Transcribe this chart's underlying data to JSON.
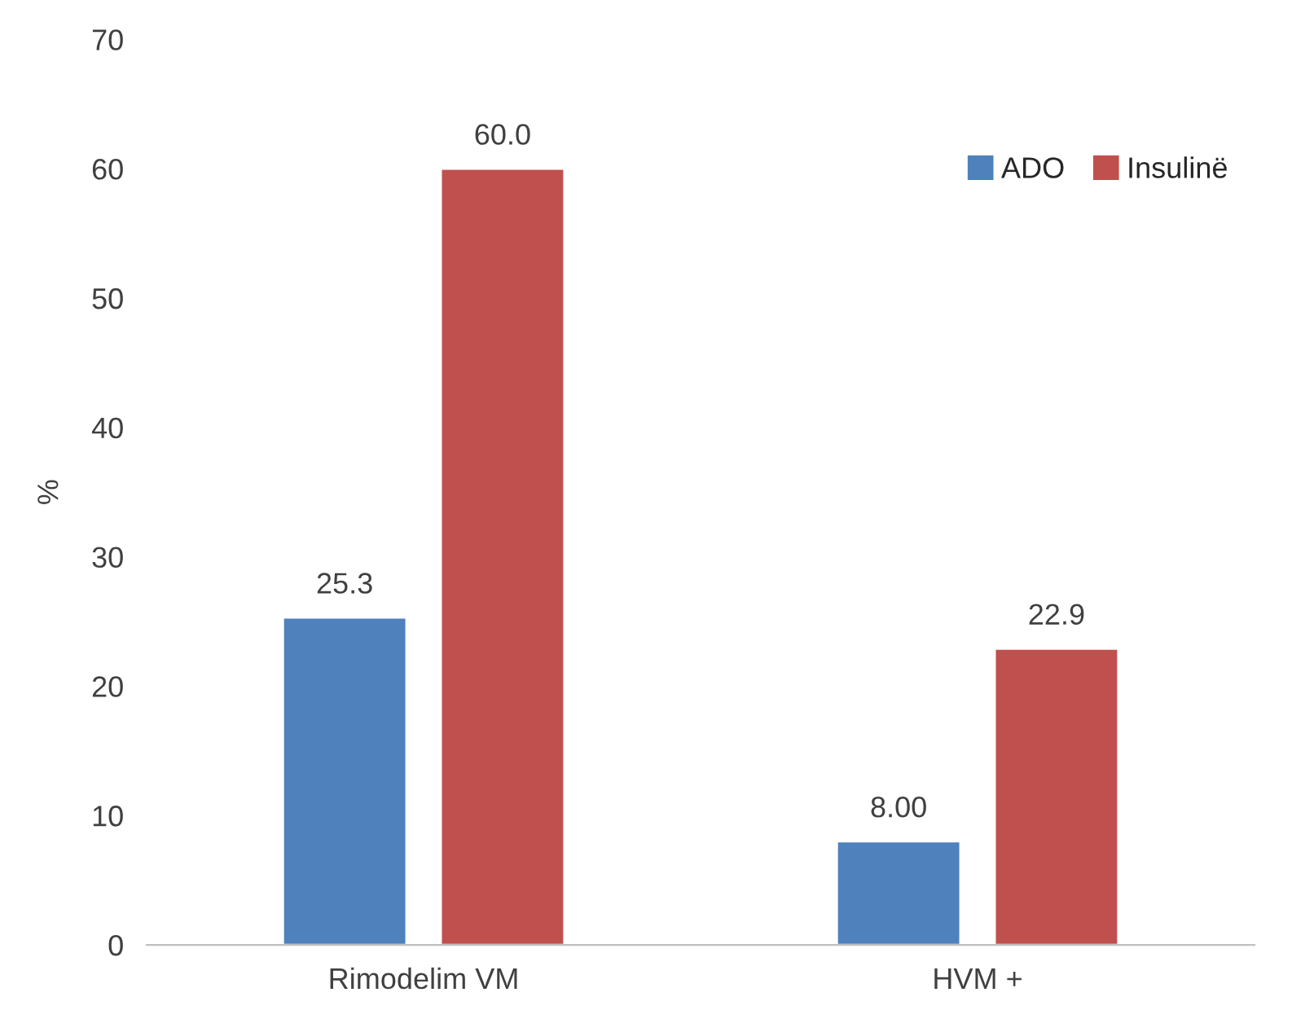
{
  "chart_data": {
    "type": "bar",
    "ylabel": "%",
    "categories": [
      "Rimodelim VM",
      "HVM +"
    ],
    "series": [
      {
        "name": "ADO",
        "color": "#4f81bd",
        "values": [
          25.3,
          8.0
        ],
        "value_labels": [
          "25.3",
          "8.00"
        ]
      },
      {
        "name": "Insulinë",
        "color": "#c0504d",
        "values": [
          60.0,
          22.9
        ],
        "value_labels": [
          "60.0",
          "22.9"
        ]
      }
    ],
    "ylim": [
      0,
      70
    ],
    "yticks": [
      0,
      10,
      20,
      30,
      40,
      50,
      60,
      70
    ],
    "grid": false,
    "legend": "top right"
  }
}
